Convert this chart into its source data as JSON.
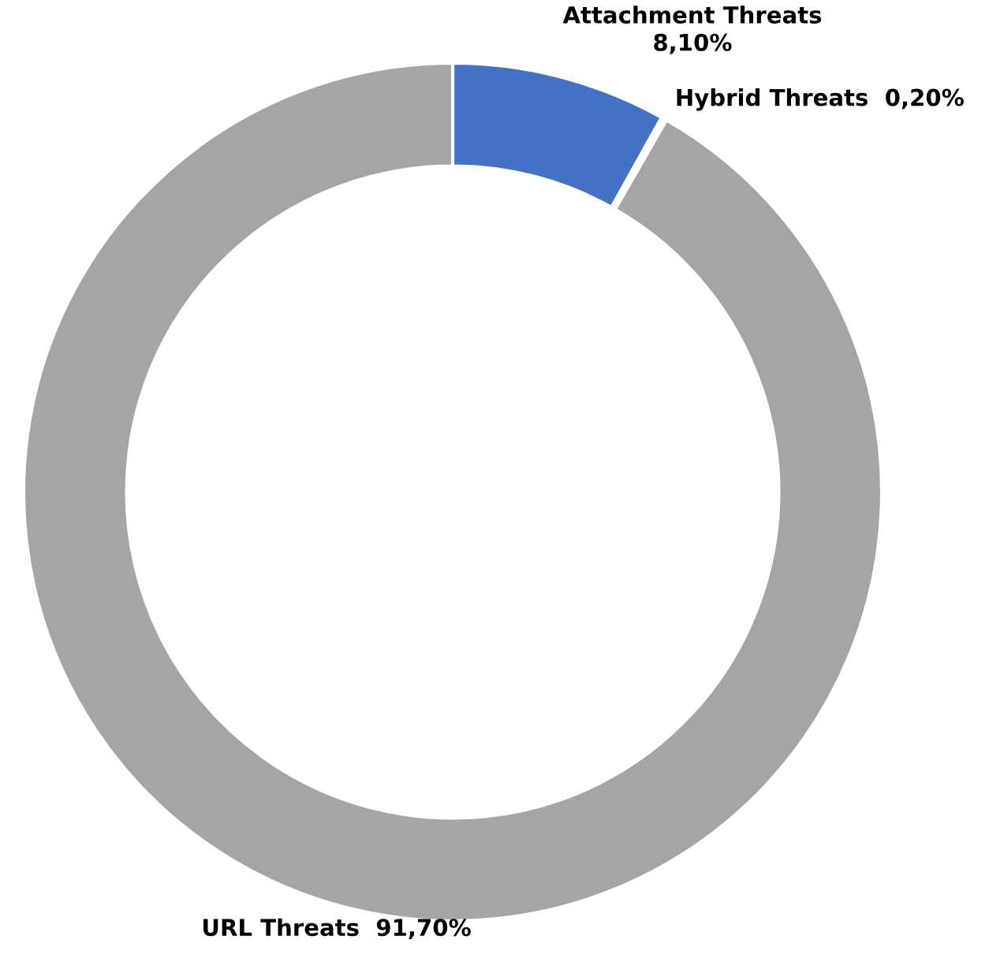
{
  "chart_data": {
    "type": "donut",
    "categories": [
      "Attachment Threats",
      "Hybrid Threats",
      "URL Threats"
    ],
    "values": [
      8.1,
      0.2,
      91.7
    ],
    "colors": [
      "#4472c4",
      "#ffffff",
      "#a5a5a5"
    ],
    "value_labels": [
      "8,10%",
      "0,20%",
      "91,70%"
    ],
    "legend": false
  }
}
